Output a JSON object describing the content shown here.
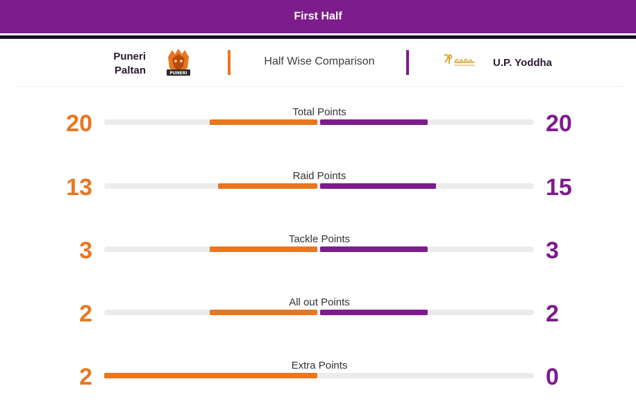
{
  "header": {
    "title": "First Half"
  },
  "teams": {
    "left": {
      "name_line1": "Puneri",
      "name_line2": "Paltan",
      "logo_icon": "puneri-paltan-logo",
      "color": "#e87722"
    },
    "right": {
      "name": "U.P. Yoddha",
      "logo_icon": "up-yoddha-logo",
      "color": "#7d1c8c"
    }
  },
  "comparison_label": "Half Wise Comparison",
  "stats": [
    {
      "label": "Total Points",
      "left": "20",
      "right": "20",
      "left_share": 0.5,
      "right_share": 0.5
    },
    {
      "label": "Raid Points",
      "left": "13",
      "right": "15",
      "left_share": 0.46,
      "right_share": 0.54
    },
    {
      "label": "Tackle Points",
      "left": "3",
      "right": "3",
      "left_share": 0.5,
      "right_share": 0.5
    },
    {
      "label": "All out Points",
      "left": "2",
      "right": "2",
      "left_share": 0.5,
      "right_share": 0.5
    },
    {
      "label": "Extra Points",
      "left": "2",
      "right": "0",
      "left_share": 1.0,
      "right_share": 0.0
    }
  ]
}
